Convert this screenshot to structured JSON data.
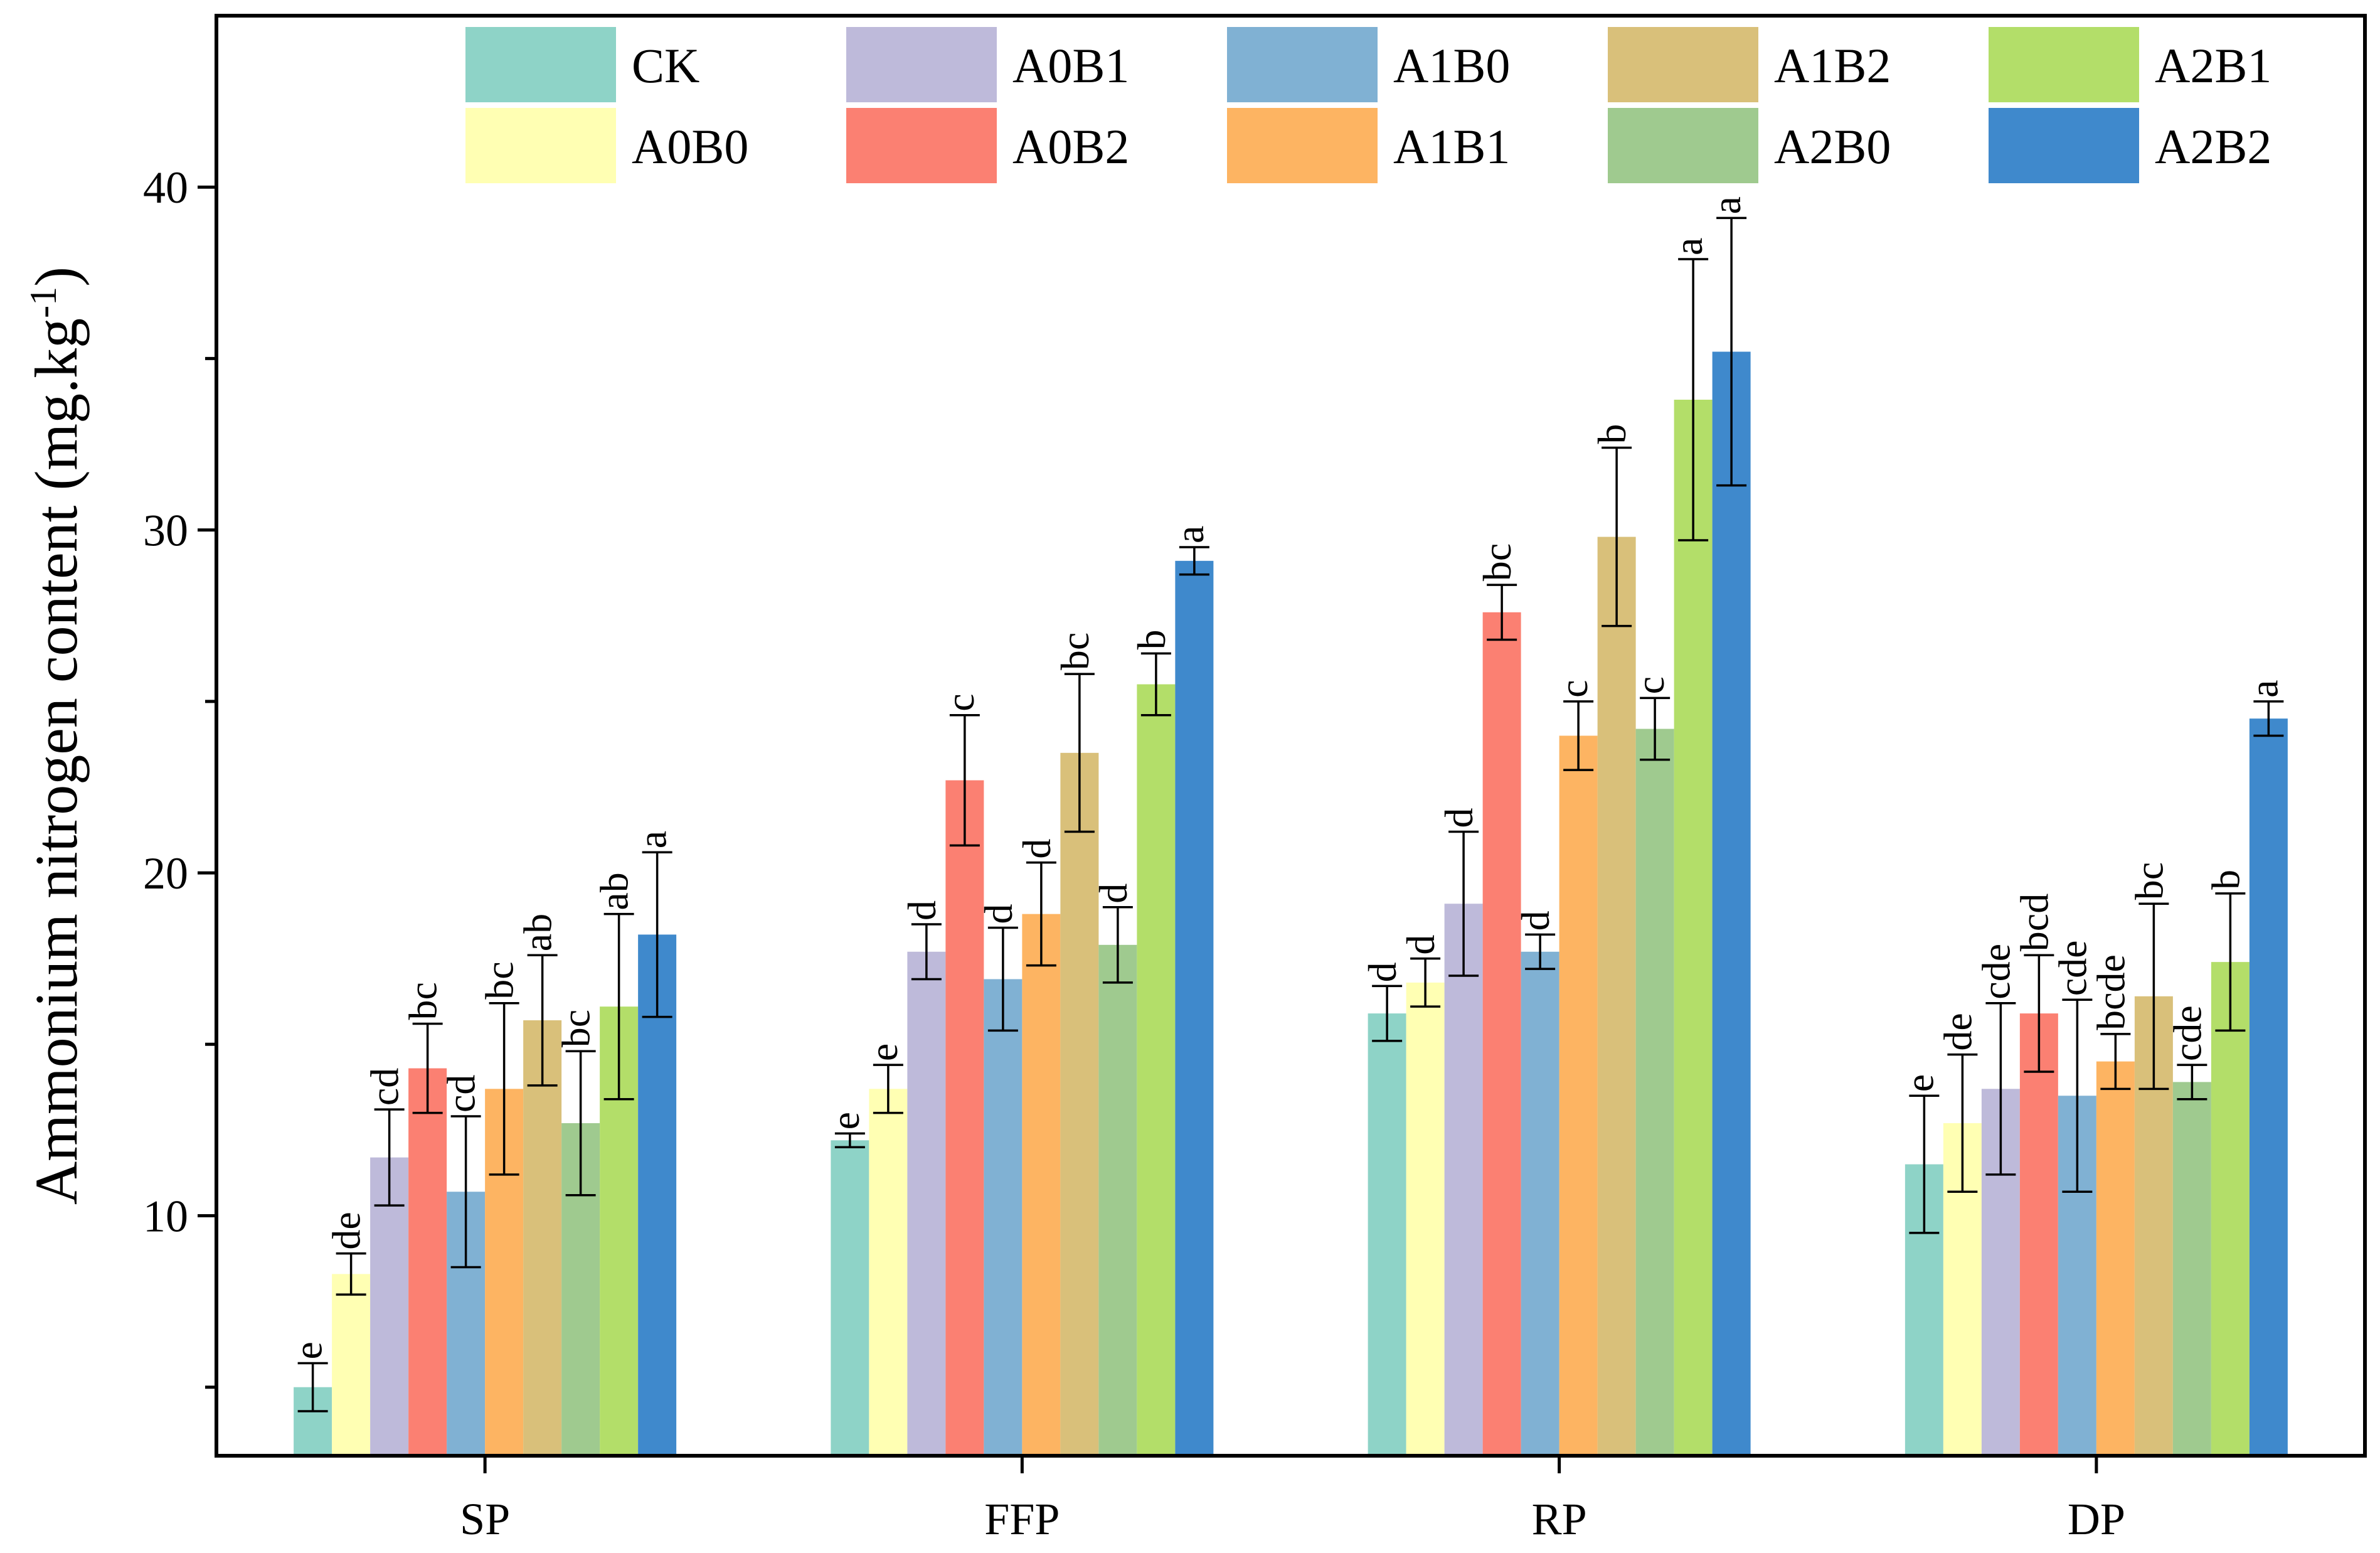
{
  "chart_data": {
    "type": "bar",
    "title": "",
    "xlabel": "",
    "ylabel": "Ammonium nitrogen content (mg.kg",
    "ylabel_superscript": "-1",
    "ylabel_suffix": ")",
    "ylim": [
      3,
      45
    ],
    "yticks": [
      10,
      20,
      30,
      40
    ],
    "grid": false,
    "legend_position": "top",
    "categories": [
      "SP",
      "FFP",
      "RP",
      "DP"
    ],
    "series": [
      {
        "name": "CK",
        "color": "#8ED3C7",
        "values": [
          5.0,
          12.2,
          15.9,
          11.5
        ],
        "errors": [
          0.7,
          0.2,
          0.8,
          2.0
        ],
        "letters": [
          "e",
          "e",
          "d",
          "e"
        ]
      },
      {
        "name": "A0B0",
        "color": "#FFFFB3",
        "values": [
          8.3,
          13.7,
          16.8,
          12.7
        ],
        "errors": [
          0.6,
          0.7,
          0.7,
          2.0
        ],
        "letters": [
          "de",
          "e",
          "d",
          "de"
        ]
      },
      {
        "name": "A0B1",
        "color": "#BEBADA",
        "values": [
          11.7,
          17.7,
          19.1,
          13.7
        ],
        "errors": [
          1.4,
          0.8,
          2.1,
          2.5
        ],
        "letters": [
          "cd",
          "d",
          "d",
          "cde"
        ]
      },
      {
        "name": "A0B2",
        "color": "#FB8072",
        "values": [
          14.3,
          22.7,
          27.6,
          15.9
        ],
        "errors": [
          1.3,
          1.9,
          0.8,
          1.7
        ],
        "letters": [
          "bc",
          "c",
          "bc",
          "bcd"
        ]
      },
      {
        "name": "A1B0",
        "color": "#80B1D3",
        "values": [
          10.7,
          16.9,
          17.7,
          13.5
        ],
        "errors": [
          2.2,
          1.5,
          0.5,
          2.8
        ],
        "letters": [
          "cd",
          "d",
          "d",
          "cde"
        ]
      },
      {
        "name": "A1B1",
        "color": "#FDB462",
        "values": [
          13.7,
          18.8,
          24.0,
          14.5
        ],
        "errors": [
          2.5,
          1.5,
          1.0,
          0.8
        ],
        "letters": [
          "bc",
          "d",
          "c",
          "bcde"
        ]
      },
      {
        "name": "A1B2",
        "color": "#D9C07A",
        "values": [
          15.7,
          23.5,
          29.8,
          16.4
        ],
        "errors": [
          1.9,
          2.3,
          2.6,
          2.7
        ],
        "letters": [
          "ab",
          "bc",
          "b",
          "bc"
        ]
      },
      {
        "name": "A2B0",
        "color": "#9FCA8F",
        "values": [
          12.7,
          17.9,
          24.2,
          13.9
        ],
        "errors": [
          2.1,
          1.1,
          0.9,
          0.5
        ],
        "letters": [
          "bc",
          "d",
          "c",
          "cde"
        ]
      },
      {
        "name": "A2B1",
        "color": "#B3DE69",
        "values": [
          16.1,
          25.5,
          33.8,
          17.4
        ],
        "errors": [
          2.7,
          0.9,
          4.1,
          2.0
        ],
        "letters": [
          "ab",
          "b",
          "a",
          "b"
        ]
      },
      {
        "name": "A2B2",
        "color": "#3F89CC",
        "values": [
          18.2,
          29.1,
          35.2,
          24.5
        ],
        "errors": [
          2.4,
          0.4,
          3.9,
          0.5
        ],
        "letters": [
          "a",
          "a",
          "a",
          "a"
        ]
      }
    ]
  }
}
